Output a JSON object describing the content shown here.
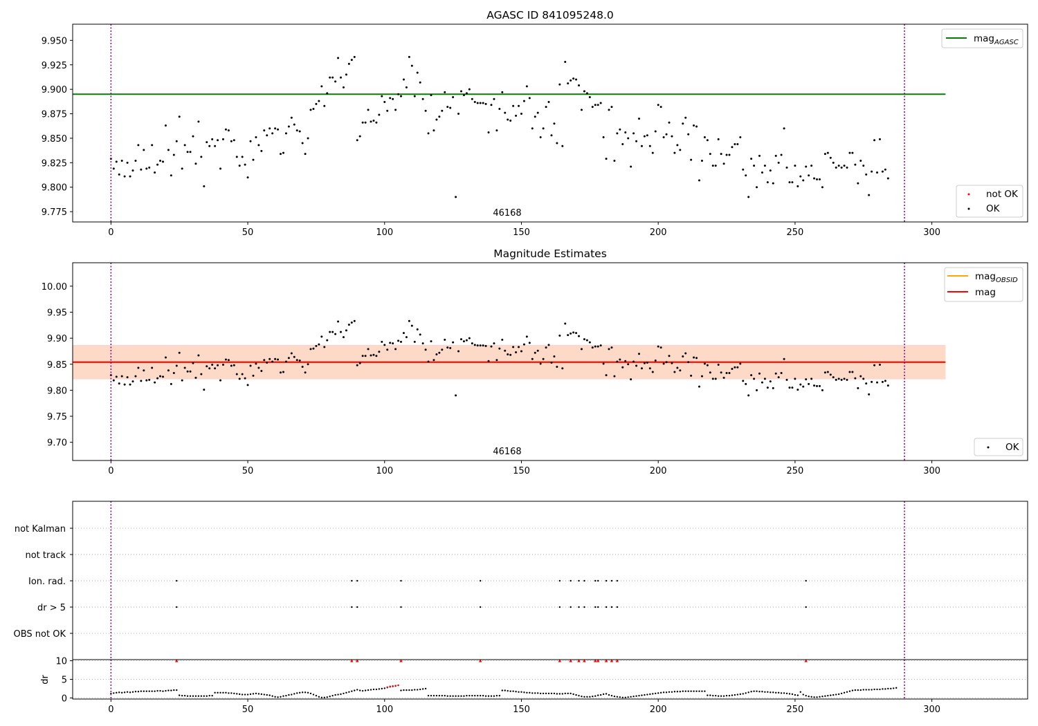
{
  "colors": {
    "mag_agasc": "#008000",
    "mag_obsid": "#ffa500",
    "mag": "#ff0000",
    "ok": "#000000",
    "not_ok": "#ff0000",
    "obs_vline": "#800080",
    "band_outer": "#ffd0d8",
    "band_inner": "#fdd9c8"
  },
  "chart_data": [
    {
      "type": "scatter",
      "title": "AGASC ID 841095248.0",
      "xlim": [
        -14,
        335
      ],
      "ylim": [
        9.7645,
        9.9665
      ],
      "xticks": [
        "0",
        "50",
        "100",
        "150",
        "200",
        "250",
        "300"
      ],
      "yticks": [
        "9.775",
        "9.800",
        "9.825",
        "9.850",
        "9.875",
        "9.900",
        "9.925",
        "9.950"
      ],
      "obsid_label": "46168",
      "obs_bounds_x": [
        0,
        290
      ],
      "mag_agasc": {
        "name": "mag_AGASC",
        "y": 9.895,
        "x_range": [
          -14,
          305
        ]
      },
      "legend_lines": [
        {
          "base": "mag",
          "sub": "AGASC"
        }
      ],
      "legend_points": [
        "not OK",
        "OK"
      ],
      "series": [
        {
          "name": "OK",
          "x_start": 0,
          "x_step": 1,
          "values": [
            9.829,
            9.819,
            9.826,
            9.813,
            9.827,
            9.811,
            9.825,
            9.811,
            9.817,
            9.827,
            9.843,
            9.818,
            9.838,
            9.819,
            9.82,
            9.843,
            9.815,
            9.823,
            9.827,
            9.826,
            9.863,
            9.838,
            9.812,
            9.833,
            9.847,
            9.872,
            9.819,
            9.843,
            9.836,
            9.836,
            9.852,
            9.824,
            9.867,
            9.831,
            9.801,
            9.846,
            9.842,
            9.849,
            9.842,
            9.848,
            9.819,
            9.849,
            9.859,
            9.858,
            9.847,
            9.848,
            9.831,
            9.822,
            9.831,
            9.823,
            9.81,
            9.847,
            9.828,
            9.851,
            9.843,
            9.837,
            9.858,
            9.853,
            9.86,
            9.855,
            9.86,
            9.859,
            9.834,
            9.835,
            9.855,
            9.862,
            9.871,
            9.864,
            9.858,
            9.857,
            9.845,
            9.834,
            9.85,
            9.879,
            9.88,
            9.885,
            9.888,
            9.903,
            9.883,
            9.896,
            9.912,
            9.912,
            9.908,
            9.932,
            9.912,
            9.902,
            9.915,
            9.926,
            9.93,
            9.933,
            9.848,
            9.852,
            9.866,
            9.866,
            9.879,
            9.867,
            9.868,
            9.866,
            9.874,
            9.893,
            9.887,
            9.878,
            9.891,
            9.89,
            9.879,
            9.895,
            9.893,
            9.91,
            9.902,
            9.933,
            9.924,
            9.893,
            9.917,
            9.907,
            9.89,
            9.878,
            9.855,
            9.894,
            9.858,
            9.869,
            9.872,
            9.878,
            9.897,
            9.882,
            9.881,
            9.892,
            9.79,
            9.875,
            9.898,
            9.894,
            9.896,
            9.9,
            9.89,
            9.887,
            9.886,
            9.886,
            9.886,
            9.885,
            9.856,
            9.884,
            9.89,
            9.858,
            9.88,
            9.897,
            9.876,
            9.869,
            9.868,
            9.883,
            9.873,
            9.883,
            9.875,
            9.888,
            9.903,
            9.891,
            9.86,
            9.872,
            9.876,
            9.851,
            9.86,
            9.882,
            9.887,
            9.853,
            9.865,
            9.845,
            9.905,
            9.842,
            9.928,
            9.906,
            9.909,
            9.911,
            9.91,
            9.904,
            9.879,
            9.898,
            9.896,
            9.892,
            9.882,
            9.884,
            9.884,
            9.886,
            9.851,
            9.829,
            9.879,
            9.882,
            9.827,
            9.855,
            9.859,
            9.844,
            9.856,
            9.85,
            9.821,
            9.855,
            9.847,
            9.87,
            9.842,
            9.852,
            9.853,
            9.842,
            9.835,
            9.857,
            9.884,
            9.882,
            9.851,
            9.854,
            9.866,
            9.852,
            9.835,
            9.843,
            9.838,
            9.865,
            9.871,
            9.854,
            9.828,
            9.863,
            9.862,
            9.807,
            9.827,
            9.851,
            9.848,
            9.834,
            9.822,
            9.822,
            9.849,
            9.834,
            9.824,
            9.833,
            9.833,
            9.841,
            9.844,
            9.844,
            9.851,
            9.818,
            9.812,
            9.79,
            9.829,
            9.822,
            9.8,
            9.832,
            9.815,
            9.822,
            9.805,
            9.817,
            9.804,
            9.832,
            9.825,
            9.833,
            9.86,
            9.82,
            9.805,
            9.805,
            9.822,
            9.801,
            9.811,
            9.807,
            9.821,
            9.812,
            9.822,
            9.809,
            9.808,
            9.808,
            9.8,
            9.834,
            9.835,
            9.83,
            9.825,
            9.82,
            9.822,
            9.82,
            9.822,
            9.82,
            9.835,
            9.835,
            9.823,
            9.804,
            9.827,
            9.822,
            9.813,
            9.792,
            9.816,
            9.848,
            9.815,
            9.849,
            9.816,
            9.818,
            9.809
          ]
        }
      ]
    },
    {
      "type": "scatter",
      "title": "Magnitude Estimates",
      "xlim": [
        -14,
        335
      ],
      "ylim": [
        9.665,
        10.045
      ],
      "xticks": [
        "0",
        "50",
        "100",
        "150",
        "200",
        "250",
        "300"
      ],
      "yticks": [
        "9.70",
        "9.75",
        "9.80",
        "9.85",
        "9.90",
        "9.95",
        "10.00"
      ],
      "obsid_label": "46168",
      "obs_bounds_x": [
        0,
        290
      ],
      "mag": {
        "name": "mag",
        "y": 9.854,
        "band": [
          9.821,
          9.887
        ],
        "x_range": [
          -14,
          305
        ]
      },
      "mag_obsid": {
        "name": "mag_OBSID",
        "y": 9.854,
        "band": [
          9.822,
          9.886
        ],
        "x_range": [
          -14,
          305
        ]
      },
      "legend_lines": [
        {
          "base": "mag",
          "sub": "OBSID"
        },
        {
          "base": "mag",
          "sub": ""
        }
      ],
      "legend_points": [
        "OK"
      ],
      "series": [
        {
          "name": "OK",
          "same_values_as": "panel 1"
        }
      ]
    },
    {
      "type": "scatter",
      "xlim": [
        -14,
        335
      ],
      "xticks": [
        "0",
        "50",
        "100",
        "150",
        "200",
        "250",
        "300"
      ],
      "flag_categories": [
        "not Kalman",
        "not track",
        "Ion. rad.",
        "dr > 5",
        "OBS not OK"
      ],
      "flag_points": {
        "Ion. rad.": [
          24,
          88,
          90,
          106,
          135,
          164,
          168,
          171,
          173,
          177,
          178,
          181,
          183,
          185,
          254
        ],
        "dr > 5": [
          24,
          88,
          90,
          106,
          135,
          164,
          168,
          171,
          173,
          177,
          178,
          181,
          183,
          185,
          254
        ]
      },
      "obs_bounds_x": [
        0,
        290
      ]
    },
    {
      "type": "scatter",
      "ylabel": "dr",
      "ylim": [
        -0.3,
        10.3
      ],
      "yticks": [
        "0",
        "5",
        "10"
      ],
      "xlim": [
        -14,
        335
      ],
      "xticks": [
        "0",
        "50",
        "100",
        "150",
        "200",
        "250",
        "300"
      ],
      "clipped_at_10_x": [
        24,
        88,
        90,
        106,
        135,
        164,
        168,
        171,
        173,
        177,
        178,
        181,
        183,
        185,
        254
      ],
      "red_points": [
        [
          101,
          2.9
        ],
        [
          102,
          3.1
        ],
        [
          103,
          3.2
        ],
        [
          104,
          3.3
        ],
        [
          105,
          3.4
        ]
      ],
      "obs_bounds_x": [
        0,
        290
      ],
      "dr": {
        "x_start": 0,
        "x_step": 1,
        "values": [
          1.2,
          1.3,
          1.4,
          1.5,
          1.4,
          1.5,
          1.6,
          1.5,
          1.6,
          1.7,
          1.7,
          1.8,
          1.8,
          1.8,
          1.8,
          1.8,
          1.8,
          1.9,
          1.9,
          1.8,
          1.9,
          2.0,
          2.0,
          2.1,
          2.1,
          0.7,
          0.6,
          0.6,
          0.5,
          0.5,
          0.5,
          0.5,
          0.5,
          0.5,
          0.5,
          0.5,
          0.6,
          0.6,
          1.4,
          1.4,
          1.4,
          1.4,
          1.4,
          1.3,
          1.3,
          1.2,
          1.1,
          1.0,
          0.9,
          0.9,
          0.9,
          1.0,
          1.1,
          1.2,
          1.1,
          1.0,
          0.9,
          0.8,
          0.7,
          0.5,
          0.3,
          0.2,
          0.3,
          0.5,
          0.6,
          0.8,
          0.9,
          1.1,
          1.3,
          1.4,
          1.5,
          1.5,
          1.4,
          1.2,
          0.9,
          0.6,
          0.3,
          0.1,
          0.1,
          0.2,
          0.4,
          0.6,
          0.8,
          0.9,
          1.0,
          1.2,
          1.4,
          1.6,
          1.8,
          2.0,
          2.2,
          2.0,
          1.9,
          2.0,
          2.1,
          2.2,
          2.3,
          2.3,
          2.4,
          2.5,
          2.6,
          2.8,
          3.0,
          3.1,
          3.2,
          3.4,
          2.0,
          2.1,
          2.1,
          2.1,
          2.1,
          2.2,
          2.2,
          2.3,
          2.4,
          2.5,
          0.6,
          0.6,
          0.6,
          0.6,
          0.6,
          0.6,
          0.6,
          0.5,
          0.5,
          0.5,
          0.5,
          0.5,
          0.5,
          0.5,
          0.6,
          0.6,
          0.6,
          0.6,
          0.6,
          0.6,
          0.6,
          0.5,
          0.5,
          0.5,
          0.5,
          0.6,
          0.6,
          2.0,
          2.0,
          1.9,
          1.8,
          1.8,
          1.7,
          1.6,
          1.6,
          1.5,
          1.4,
          1.4,
          1.3,
          1.3,
          1.3,
          1.2,
          1.2,
          1.2,
          1.2,
          1.2,
          1.2,
          1.1,
          1.1,
          1.1,
          1.2,
          1.2,
          1.2,
          1.0,
          0.8,
          0.6,
          0.4,
          0.3,
          0.3,
          0.3,
          0.4,
          0.5,
          0.7,
          0.8,
          1.0,
          1.1,
          0.8,
          0.6,
          0.4,
          0.3,
          0.2,
          0.1,
          0.1,
          0.2,
          0.3,
          0.4,
          0.5,
          0.6,
          0.7,
          0.8,
          0.9,
          1.0,
          1.1,
          1.2,
          1.3,
          1.4,
          1.5,
          1.5,
          1.6,
          1.6,
          1.7,
          1.7,
          1.7,
          1.8,
          1.8,
          1.8,
          1.8,
          1.8,
          1.8,
          1.8,
          1.8,
          1.8,
          0.7,
          0.7,
          0.6,
          0.6,
          0.5,
          0.5,
          0.5,
          0.6,
          0.6,
          0.7,
          0.8,
          0.9,
          1.0,
          1.1,
          1.3,
          1.5,
          1.7,
          1.8,
          1.8,
          1.7,
          1.7,
          1.6,
          1.6,
          1.5,
          1.5,
          1.4,
          1.4,
          1.3,
          1.3,
          1.2,
          1.1,
          1.0,
          0.8,
          0.7,
          1.6,
          0.9,
          0.6,
          0.4,
          0.3,
          0.2,
          0.2,
          0.3,
          0.4,
          0.5,
          0.6,
          0.7,
          0.8,
          0.9,
          1.0,
          1.2,
          1.4,
          1.6,
          1.8,
          2.0,
          2.1,
          2.1,
          2.1,
          2.2,
          2.2,
          2.2,
          2.2,
          2.3,
          2.3,
          2.3,
          2.4,
          2.4,
          2.5,
          2.5,
          2.6,
          2.7
        ]
      }
    }
  ]
}
